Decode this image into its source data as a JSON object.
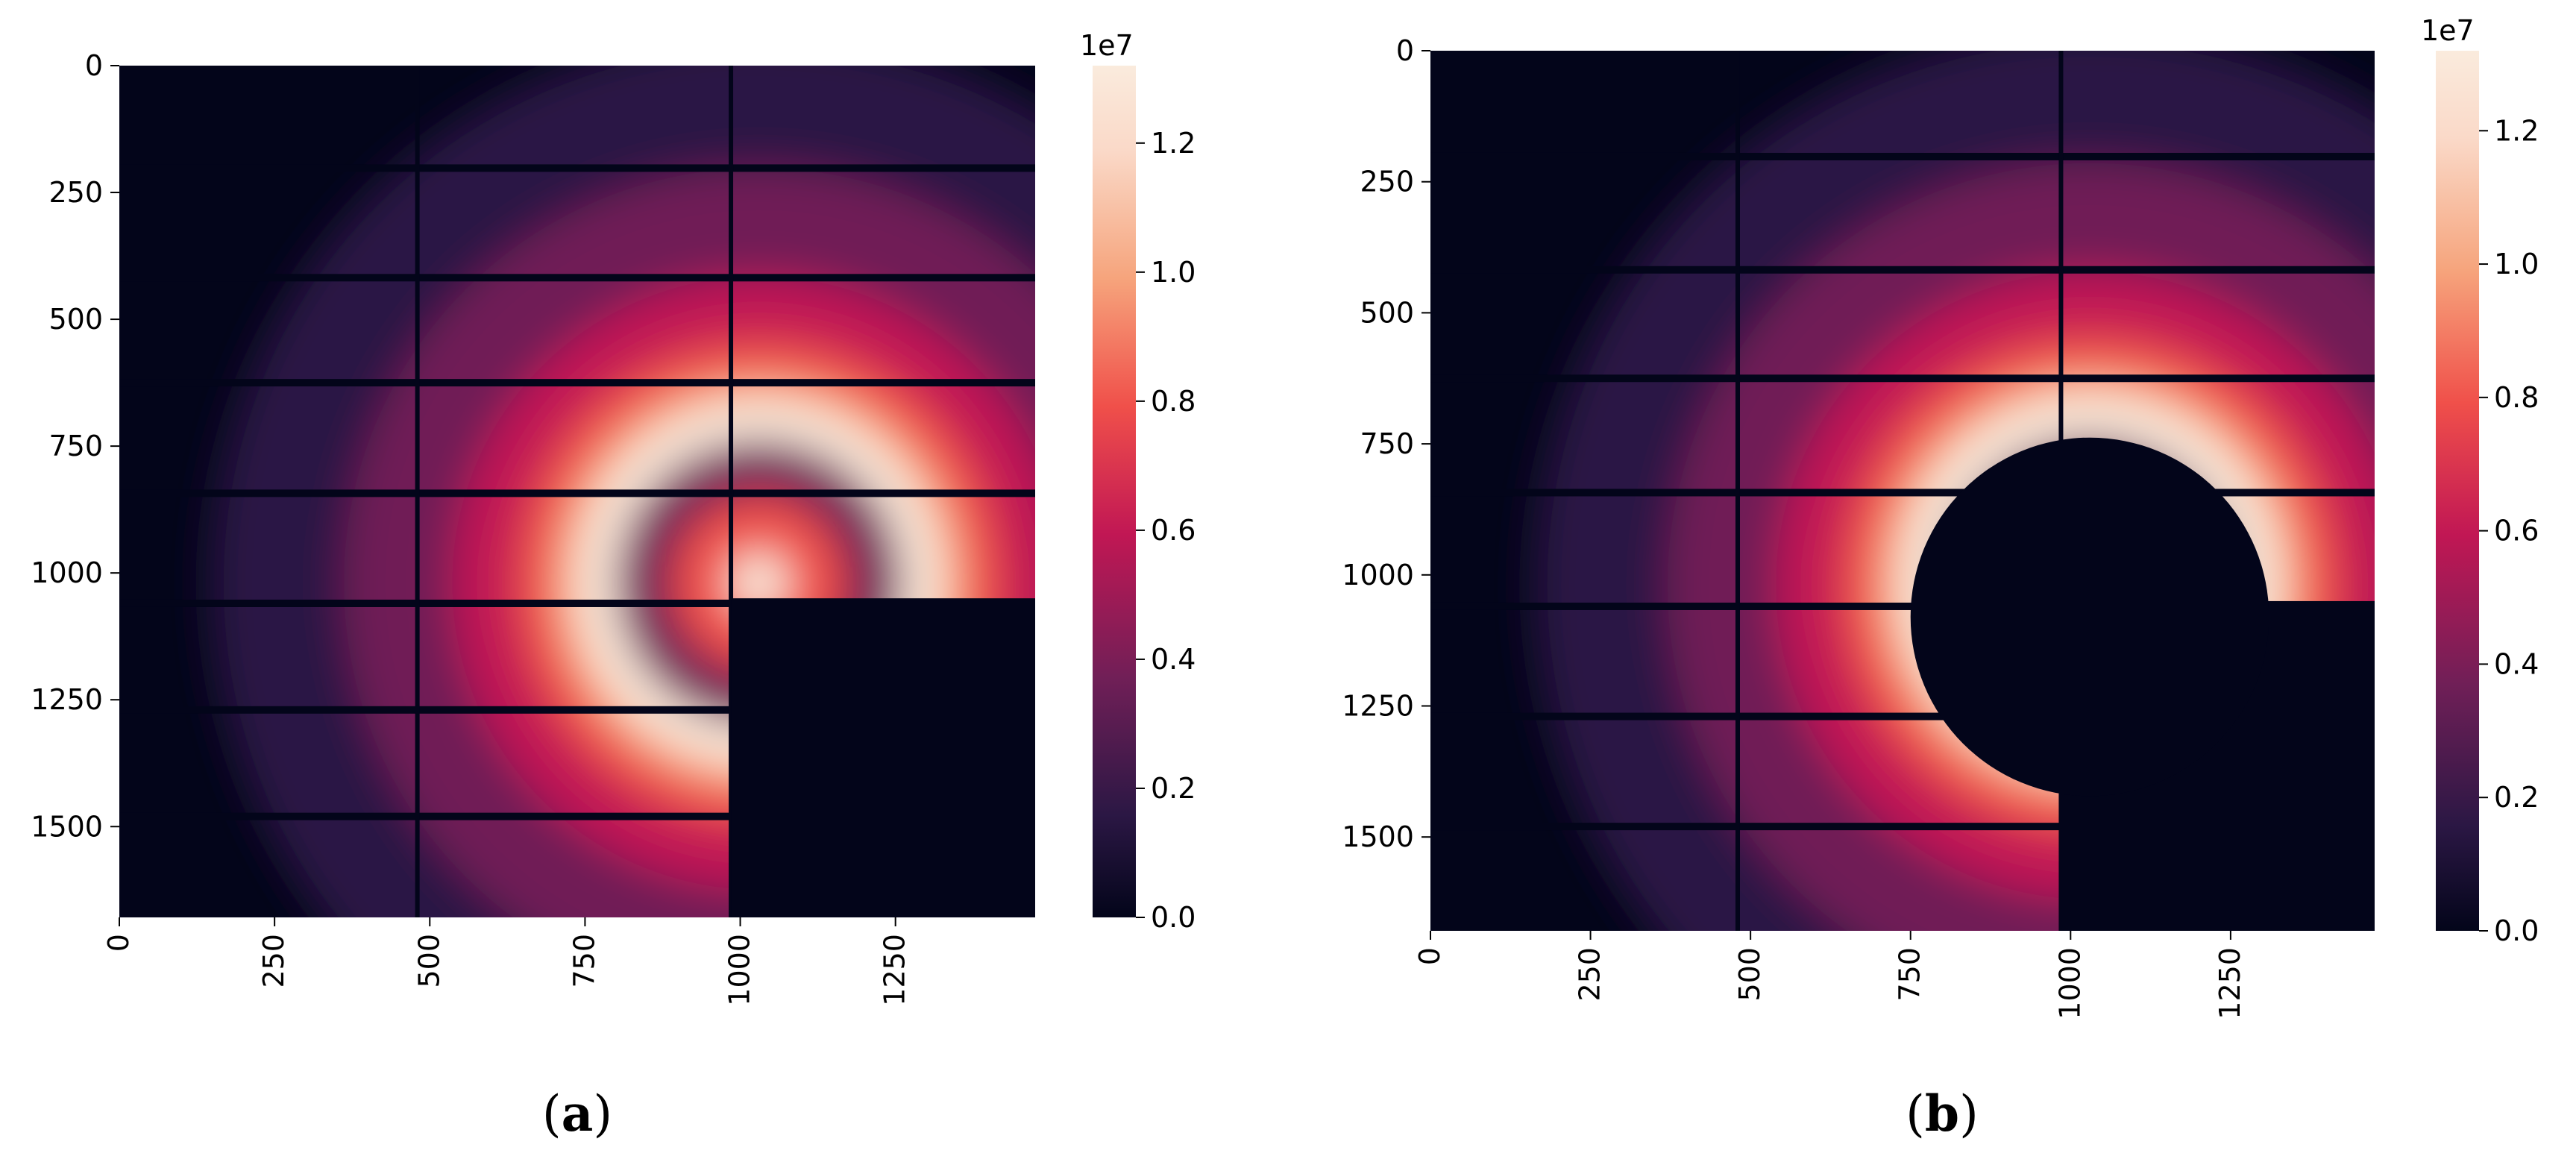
{
  "chart_data": [
    {
      "type": "heatmap",
      "panel_label": "(a)",
      "caption_letter": "a",
      "title": "",
      "xlabel": "",
      "ylabel": "",
      "xlim": [
        0,
        1475
      ],
      "ylim": [
        1679,
        0
      ],
      "x_ticks": [
        0,
        250,
        500,
        750,
        1000,
        1250
      ],
      "y_ticks": [
        0,
        250,
        500,
        750,
        1000,
        1250,
        1500
      ],
      "colorbar": {
        "multiplier_label": "1e7",
        "ticks": [
          0.0,
          0.2,
          0.4,
          0.6,
          0.8,
          1.0,
          1.2
        ],
        "tick_labels": [
          "0.0",
          "0.2",
          "0.4",
          "0.6",
          "0.8",
          "1.0",
          "1.2"
        ],
        "max": 1.32,
        "colormap": "rocket"
      },
      "features": {
        "beam_center": [
          1030,
          1020
        ],
        "ring_radii": [
          140,
          230,
          380
        ],
        "detector_gap_rows": [
          202,
          418,
          625,
          843,
          1060,
          1270,
          1480
        ],
        "detector_gap_cols": [
          480,
          985
        ],
        "masked_rectangle": {
          "x": [
            985,
            1475
          ],
          "y": [
            1050,
            1679
          ]
        },
        "masked_circle": null
      }
    },
    {
      "type": "heatmap",
      "panel_label": "(b)",
      "caption_letter": "b",
      "title": "",
      "xlabel": "",
      "ylabel": "",
      "xlim": [
        0,
        1475
      ],
      "ylim": [
        1679,
        0
      ],
      "x_ticks": [
        0,
        250,
        500,
        750,
        1000,
        1250
      ],
      "y_ticks": [
        0,
        250,
        500,
        750,
        1000,
        1250,
        1500
      ],
      "colorbar": {
        "multiplier_label": "1e7",
        "ticks": [
          0.0,
          0.2,
          0.4,
          0.6,
          0.8,
          1.0,
          1.2
        ],
        "tick_labels": [
          "0.0",
          "0.2",
          "0.4",
          "0.6",
          "0.8",
          "1.0",
          "1.2"
        ],
        "max": 1.32,
        "colormap": "rocket"
      },
      "features": {
        "beam_center": [
          1030,
          1020
        ],
        "ring_radii": [
          140,
          230,
          380
        ],
        "detector_gap_rows": [
          202,
          418,
          625,
          843,
          1060,
          1270,
          1480
        ],
        "detector_gap_cols": [
          480,
          985
        ],
        "masked_rectangle": {
          "x": [
            985,
            1475
          ],
          "y": [
            1050,
            1679
          ]
        },
        "masked_circle": {
          "center": [
            1030,
            1080
          ],
          "radius": 280
        }
      }
    }
  ]
}
